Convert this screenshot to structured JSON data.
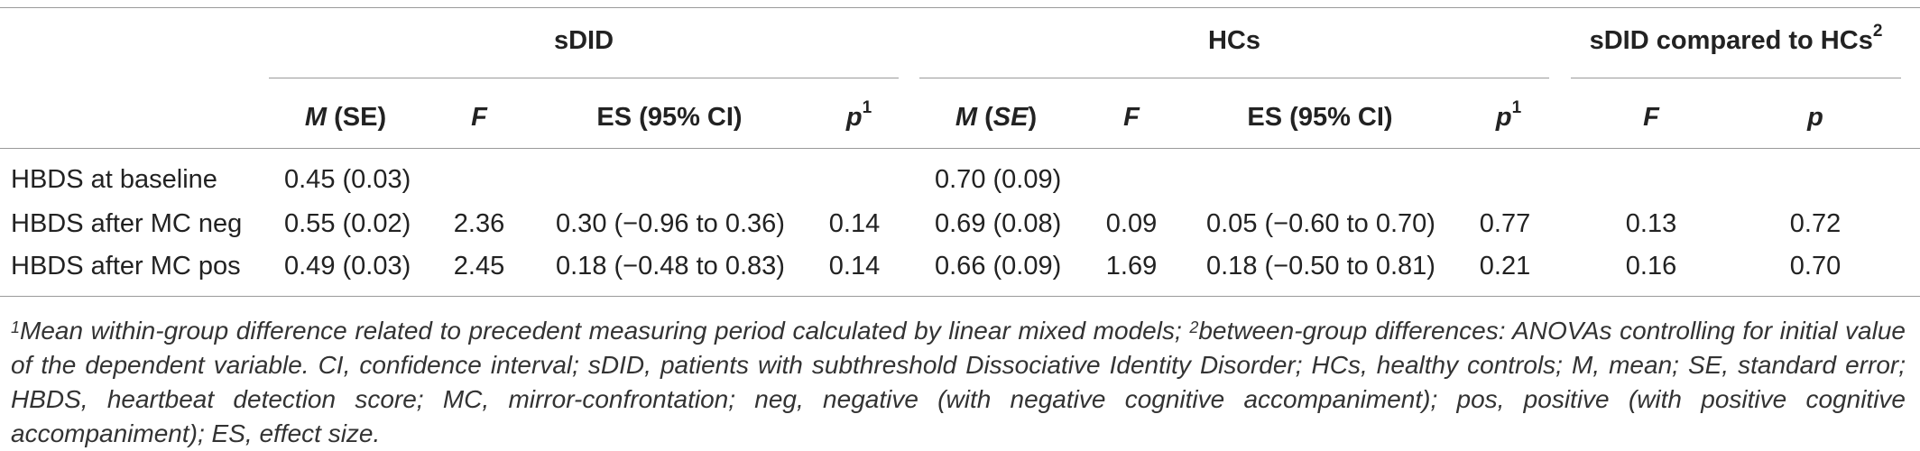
{
  "groups": {
    "sdid": "sDID",
    "hcs": "HCs",
    "compare": "sDID compared to HCs",
    "compare_sup": "2"
  },
  "subheaders": {
    "m_se_1_m": "M",
    "m_se_1_rest": " (SE)",
    "f_1": "F",
    "es_1": "ES (95% CI)",
    "p_1": "p",
    "p_1_sup": "1",
    "m_se_2_m": "M",
    "m_se_2_open": " (",
    "m_se_2_se": "SE",
    "m_se_2_close": ")",
    "f_2": "F",
    "es_2": "ES (95% CI)",
    "p_2": "p",
    "p_2_sup": "1",
    "f_3": "F",
    "p_3": "p"
  },
  "rows": [
    {
      "label": "HBDS at baseline",
      "m1": "0.45 (0.03)",
      "f1": "",
      "es1": "",
      "p1": "",
      "m2": "0.70 (0.09)",
      "f2": "",
      "es2": "",
      "p2": "",
      "f3": "",
      "p3": ""
    },
    {
      "label": "HBDS after MC neg",
      "m1": "0.55 (0.02)",
      "f1": "2.36",
      "es1": "0.30 (−0.96 to 0.36)",
      "p1": "0.14",
      "m2": "0.69 (0.08)",
      "f2": "0.09",
      "es2": "0.05 (−0.60 to 0.70)",
      "p2": "0.77",
      "f3": "0.13",
      "p3": "0.72"
    },
    {
      "label": "HBDS after MC pos",
      "m1": "0.49 (0.03)",
      "f1": "2.45",
      "es1": "0.18 (−0.48 to 0.83)",
      "p1": "0.14",
      "m2": "0.66 (0.09)",
      "f2": "1.69",
      "es2": "0.18 (−0.50 to 0.81)",
      "p2": "0.21",
      "f3": "0.16",
      "p3": "0.70"
    }
  ],
  "footnote": {
    "sup1": "1",
    "part1": "Mean within-group difference related to precedent measuring period calculated by linear mixed models; ",
    "sup2": "2",
    "part2": "between-group differences: ANOVAs controlling for initial value of the dependent variable. CI, confidence interval; sDID, patients with subthreshold Dissociative Identity Disorder; HCs, healthy controls; M, mean; SE, standard error; HBDS, heartbeat detection score; MC, mirror-confrontation; neg, negative (with negative cognitive accompaniment); pos, positive (with positive cognitive accompaniment); ES, effect size."
  }
}
